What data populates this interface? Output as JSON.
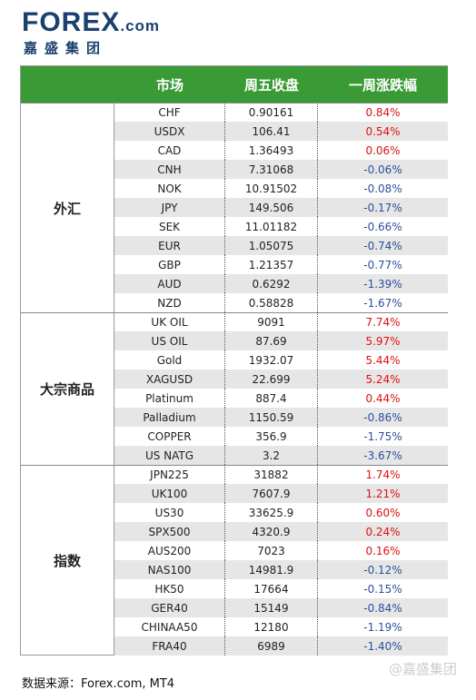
{
  "header": {
    "logo": "FOREX",
    "logo_suffix": ".com",
    "subtitle": "嘉盛集团"
  },
  "table": {
    "columns": [
      "市场",
      "周五收盘",
      "一周涨跌幅"
    ],
    "groups": [
      {
        "name": "外汇",
        "rows": [
          [
            "CHF",
            "0.90161",
            "0.84%"
          ],
          [
            "USDX",
            "106.41",
            "0.54%"
          ],
          [
            "CAD",
            "1.36493",
            "0.06%"
          ],
          [
            "CNH",
            "7.31068",
            "-0.06%"
          ],
          [
            "NOK",
            "10.91502",
            "-0.08%"
          ],
          [
            "JPY",
            "149.506",
            "-0.17%"
          ],
          [
            "SEK",
            "11.01182",
            "-0.66%"
          ],
          [
            "EUR",
            "1.05075",
            "-0.74%"
          ],
          [
            "GBP",
            "1.21357",
            "-0.77%"
          ],
          [
            "AUD",
            "0.6292",
            "-1.39%"
          ],
          [
            "NZD",
            "0.58828",
            "-1.67%"
          ]
        ]
      },
      {
        "name": "大宗商品",
        "rows": [
          [
            "UK OIL",
            "9091",
            "7.74%"
          ],
          [
            "US OIL",
            "87.69",
            "5.97%"
          ],
          [
            "Gold",
            "1932.07",
            "5.44%"
          ],
          [
            "XAGUSD",
            "22.699",
            "5.24%"
          ],
          [
            "Platinum",
            "887.4",
            "0.44%"
          ],
          [
            "Palladium",
            "1150.59",
            "-0.86%"
          ],
          [
            "COPPER",
            "356.9",
            "-1.75%"
          ],
          [
            "US NATG",
            "3.2",
            "-3.67%"
          ]
        ]
      },
      {
        "name": "指数",
        "rows": [
          [
            "JPN225",
            "31882",
            "1.74%"
          ],
          [
            "UK100",
            "7607.9",
            "1.21%"
          ],
          [
            "US30",
            "33625.9",
            "0.60%"
          ],
          [
            "SPX500",
            "4320.9",
            "0.24%"
          ],
          [
            "AUS200",
            "7023",
            "0.16%"
          ],
          [
            "NAS100",
            "14981.9",
            "-0.12%"
          ],
          [
            "HK50",
            "17664",
            "-0.15%"
          ],
          [
            "GER40",
            "15149",
            "-0.84%"
          ],
          [
            "CHINAA50",
            "12180",
            "-1.19%"
          ],
          [
            "FRA40",
            "6989",
            "-1.40%"
          ]
        ]
      }
    ]
  },
  "footer": {
    "source": "数据来源：Forex.com, MT4",
    "watermark": "@嘉盛集团"
  }
}
